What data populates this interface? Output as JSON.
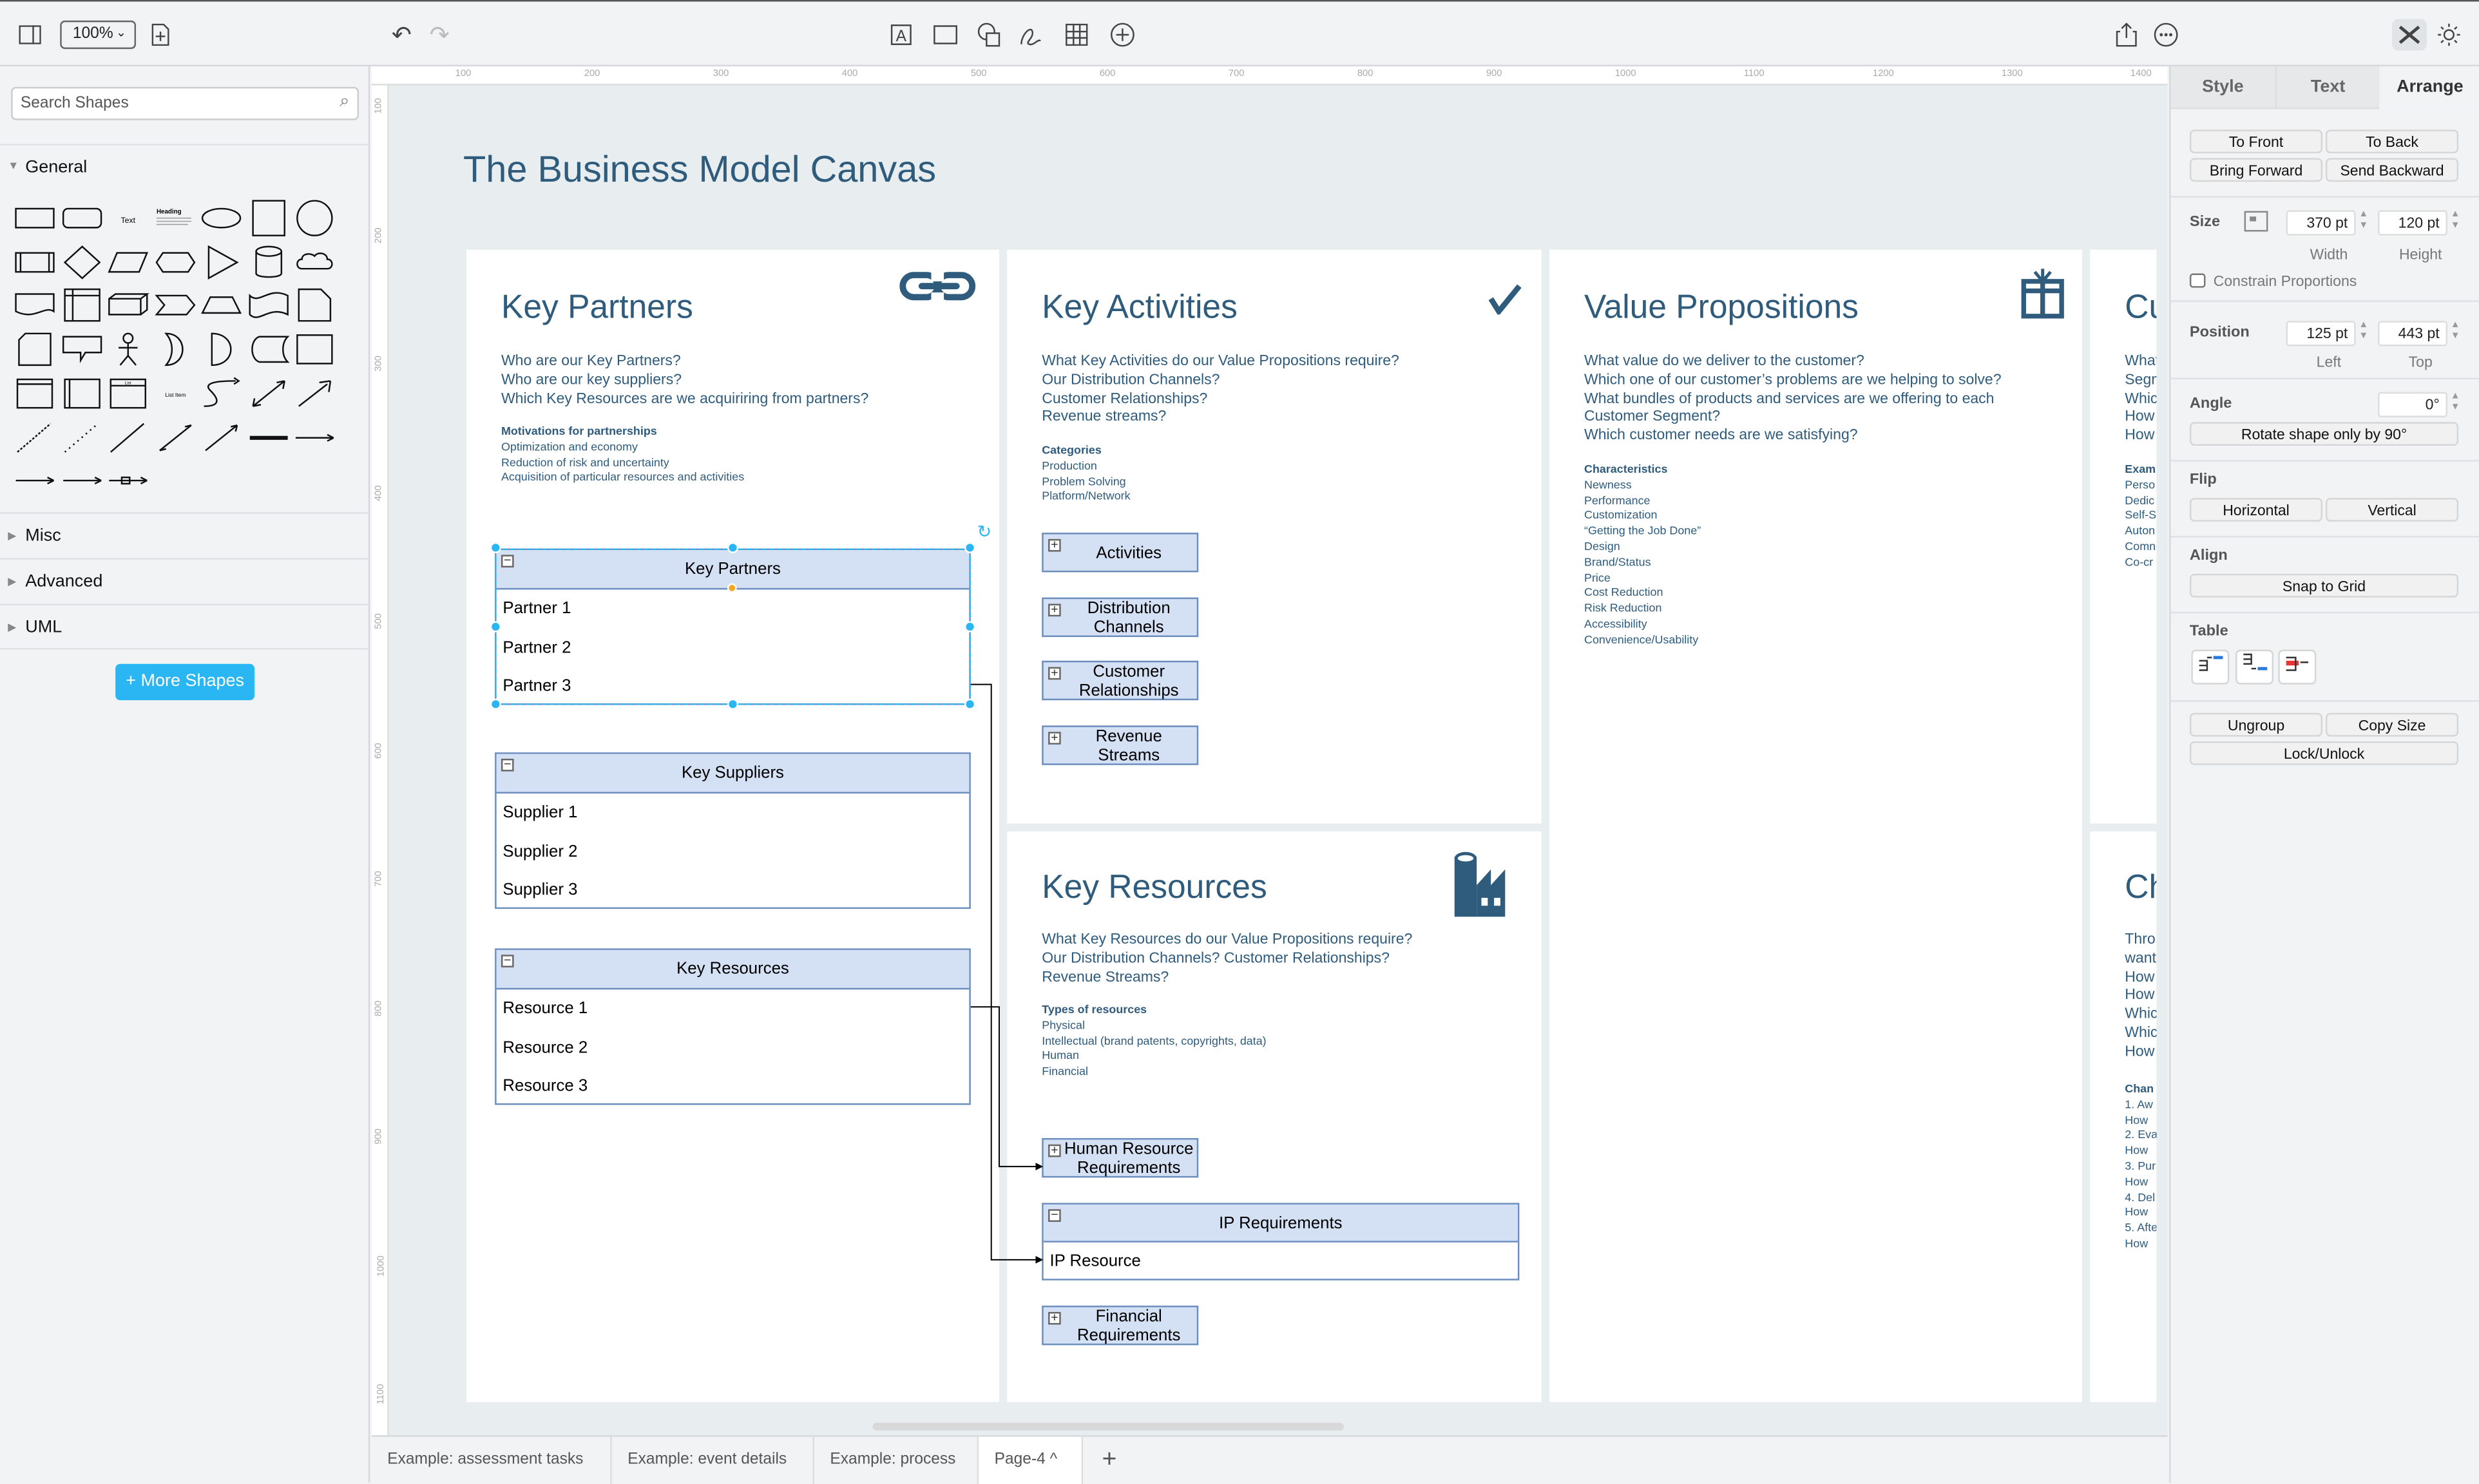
{
  "toolbar": {
    "zoom": "100%",
    "icons": [
      "sidebar-toggle-icon",
      "new-page-icon",
      "undo-icon",
      "redo-icon",
      "text-icon",
      "rectangle-icon",
      "shapes-icon",
      "freehand-icon",
      "table-icon",
      "insert-icon",
      "share-icon",
      "more-icon",
      "format-panel-icon",
      "theme-icon"
    ]
  },
  "sidebar": {
    "search_placeholder": "Search Shapes",
    "sections": [
      {
        "label": "General",
        "expanded": true
      },
      {
        "label": "Misc",
        "expanded": false
      },
      {
        "label": "Advanced",
        "expanded": false
      },
      {
        "label": "UML",
        "expanded": false
      }
    ],
    "shapes": [
      "rectangle",
      "rounded-rectangle",
      "text",
      "heading",
      "ellipse",
      "square",
      "circle",
      "process",
      "diamond",
      "parallelogram",
      "hexagon",
      "triangle",
      "cylinder",
      "cloud",
      "document",
      "internal-storage",
      "cube",
      "step",
      "trapezoid",
      "tape",
      "note",
      "card",
      "callout",
      "actor",
      "or",
      "and",
      "data-storage",
      "container",
      "horizontal-container",
      "vertical-container",
      "list",
      "list-item",
      "curve",
      "bidirectional-arrow",
      "arrow",
      "dashed-line",
      "dotted-line",
      "line",
      "bidirectional-connector",
      "directional-connector",
      "link",
      "connector-with-label",
      "connector-with-2-labels",
      "connector-with-3-labels",
      "connector-with-symbol"
    ],
    "shape_text": {
      "text": "Text",
      "heading": "Heading",
      "list": "List",
      "list_item": "List Item"
    },
    "more_shapes": "+ More Shapes"
  },
  "rulers": {
    "top": [
      "100",
      "200",
      "300",
      "400",
      "500",
      "600",
      "700",
      "800",
      "900",
      "1000",
      "1100",
      "1200",
      "1300",
      "1400"
    ],
    "left": [
      "100",
      "200",
      "300",
      "400",
      "500",
      "600",
      "700",
      "800",
      "900",
      "1000",
      "1100"
    ]
  },
  "canvas": {
    "title": "The Business Model Canvas",
    "color": "#2f5b7c",
    "key_partners": {
      "title": "Key Partners",
      "icon": "link-icon",
      "questions": [
        "Who are our Key Partners?",
        "Who are our key suppliers?",
        "Which Key Resources are we acquiriring from partners?"
      ],
      "detail_title": "Motivations for partnerships",
      "details": [
        "Optimization and economy",
        "Reduction of risk and uncertainty",
        "Acquisition of particular resources and activities"
      ],
      "tables": [
        {
          "header": "Key Partners",
          "rows": [
            "Partner 1",
            "Partner 2",
            "Partner 3"
          ],
          "selected": true
        },
        {
          "header": "Key Suppliers",
          "rows": [
            "Supplier 1",
            "Supplier 2",
            "Supplier 3"
          ]
        },
        {
          "header": "Key Resources",
          "rows": [
            "Resource 1",
            "Resource 2",
            "Resource 3"
          ]
        }
      ]
    },
    "key_activities": {
      "title": "Key Activities",
      "icon": "checkmark-icon",
      "questions": [
        "What Key Activities do our Value Propositions require?",
        "Our Distribution Channels?",
        "Customer Relationships?",
        "Revenue streams?"
      ],
      "detail_title": "Categories",
      "details": [
        "Production",
        "Problem Solving",
        "Platform/Network"
      ],
      "boxes": [
        "Activities",
        "Distribution Channels",
        "Customer Relationships",
        "Revenue Streams"
      ]
    },
    "key_resources": {
      "title": "Key Resources",
      "icon": "factory-icon",
      "questions": [
        "What Key Resources do our Value Propositions require?",
        "Our Distribution Channels? Customer Relationships?",
        "Revenue Streams?"
      ],
      "detail_title": "Types of resources",
      "details": [
        "Physical",
        "Intellectual (brand patents, copyrights, data)",
        "Human",
        "Financial"
      ],
      "box_human": "Human Resource Requirements",
      "ip_table": {
        "header": "IP Requirements",
        "rows": [
          "IP Resource"
        ]
      },
      "box_financial": "Financial Requirements"
    },
    "value_propositions": {
      "title": "Value Propositions",
      "icon": "gift-icon",
      "questions": [
        "What value do we deliver to the customer?",
        "Which one of our customer’s problems are we helping to solve?",
        "What bundles of products and services are we offering to each",
        "Customer Segment?",
        "Which customer needs are we satisfying?"
      ],
      "detail_title": "Characteristics",
      "details": [
        "Newness",
        "Performance",
        "Customization",
        "“Getting the Job Done”",
        "Design",
        "Brand/Status",
        "Price",
        "Cost Reduction",
        "Risk Reduction",
        "Accessibility",
        "Convenience/Usability"
      ]
    },
    "customer_relationships": {
      "title": "Cu",
      "questions": [
        "What",
        "Segm",
        "Whic",
        "How",
        "How"
      ],
      "detail_title": "Exam",
      "details": [
        "Perso",
        "Dedic",
        "Self-S",
        "Auton",
        "Comn",
        "Co-cr"
      ]
    },
    "channels": {
      "title": "Ch",
      "questions": [
        "Thro",
        "want",
        "How",
        "How",
        "Whic",
        "Whic",
        "How"
      ],
      "detail_title": "Chan",
      "details": [
        "1. Aw",
        "How",
        "2. Eva",
        "How",
        "3. Pur",
        "How",
        "4. Del",
        "How",
        "5. Afte",
        "How"
      ]
    }
  },
  "format_panel": {
    "tabs": [
      "Style",
      "Text",
      "Arrange"
    ],
    "active_tab": "Arrange",
    "to_front": "To Front",
    "to_back": "To Back",
    "bring_forward": "Bring Forward",
    "send_backward": "Send Backward",
    "size_label": "Size",
    "width": "370 pt",
    "height": "120 pt",
    "width_label": "Width",
    "height_label": "Height",
    "constrain": "Constrain Proportions",
    "constrain_checked": false,
    "position_label": "Position",
    "left": "125 pt",
    "top": "443 pt",
    "left_label": "Left",
    "top_label": "Top",
    "angle_label": "Angle",
    "angle": "0°",
    "rotate": "Rotate shape only by 90°",
    "flip_label": "Flip",
    "horizontal": "Horizontal",
    "vertical": "Vertical",
    "align_label": "Align",
    "snap": "Snap to Grid",
    "table_label": "Table",
    "ungroup": "Ungroup",
    "copy_size": "Copy Size",
    "lock": "Lock/Unlock"
  },
  "page_tabs": {
    "tabs": [
      "Example: assessment tasks",
      "Example: event details",
      "Example: process",
      "Page-4 ^"
    ],
    "active": "Page-4 ^",
    "add": "+"
  }
}
